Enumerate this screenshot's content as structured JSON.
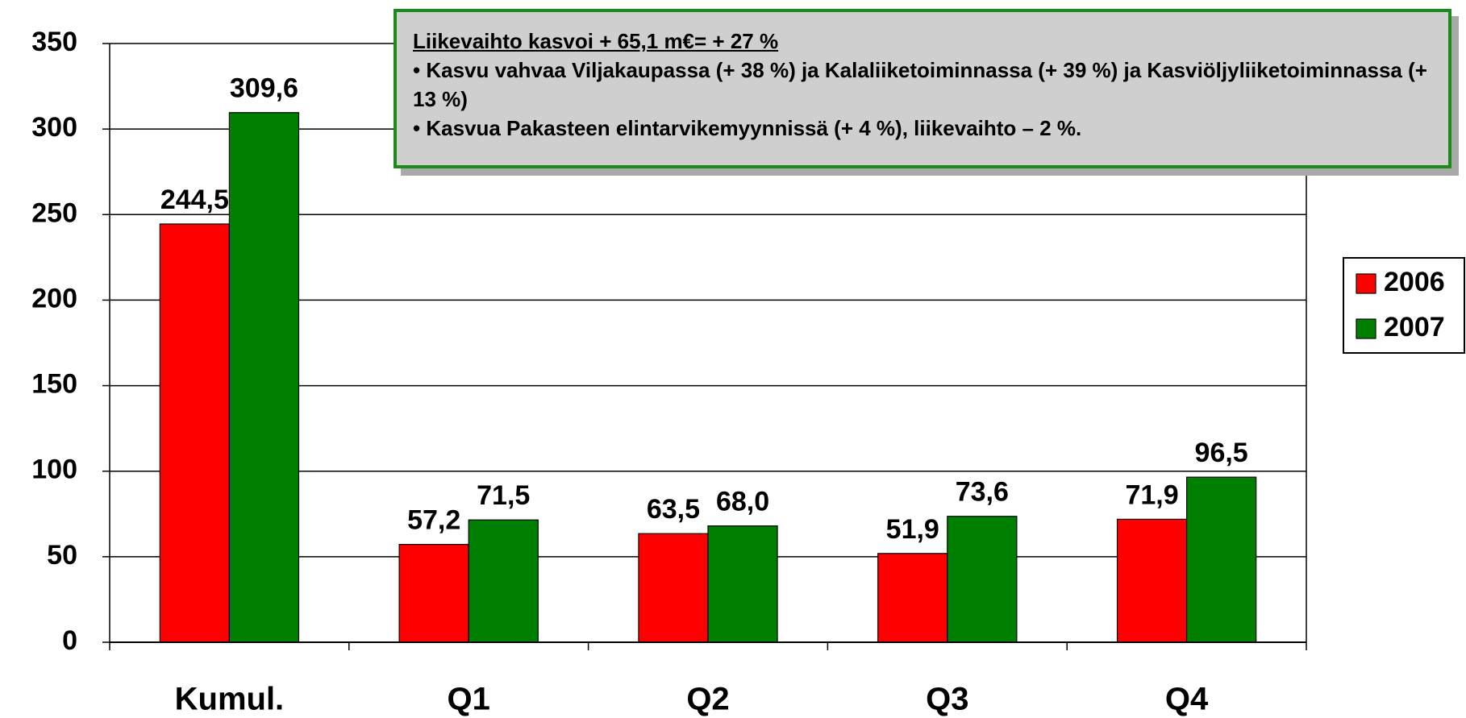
{
  "chart_data": {
    "type": "bar",
    "categories": [
      "Kumul.",
      "Q1",
      "Q2",
      "Q3",
      "Q4"
    ],
    "series": [
      {
        "name": "2006",
        "color": "#ff0000",
        "values": [
          244.5,
          57.2,
          63.5,
          51.9,
          71.9
        ],
        "value_labels": [
          "244,5",
          "57,2",
          "63,5",
          "51,9",
          "71,9"
        ]
      },
      {
        "name": "2007",
        "color": "#008000",
        "values": [
          309.6,
          71.5,
          68.0,
          73.6,
          96.5
        ],
        "value_labels": [
          "309,6",
          "71,5",
          "68,0",
          "73,6",
          "96,5"
        ]
      }
    ],
    "ylim": [
      0,
      350
    ],
    "yticks": [
      0,
      50,
      100,
      150,
      200,
      250,
      300,
      350
    ],
    "grid": true,
    "legend": "right",
    "annotation": {
      "heading": "Liikevaihto kasvoi + 65,1 m€= + 27 %",
      "bullets": [
        "• Kasvu vahvaa Viljakaupassa (+ 38 %) ja Kalaliiketoiminnassa (+ 39 %) ja Kasviöljyliiketoiminnassa (+ 13 %)",
        "• Kasvua Pakasteen elintarvikemyynnissä (+ 4 %), liikevaihto – 2 %."
      ]
    }
  }
}
